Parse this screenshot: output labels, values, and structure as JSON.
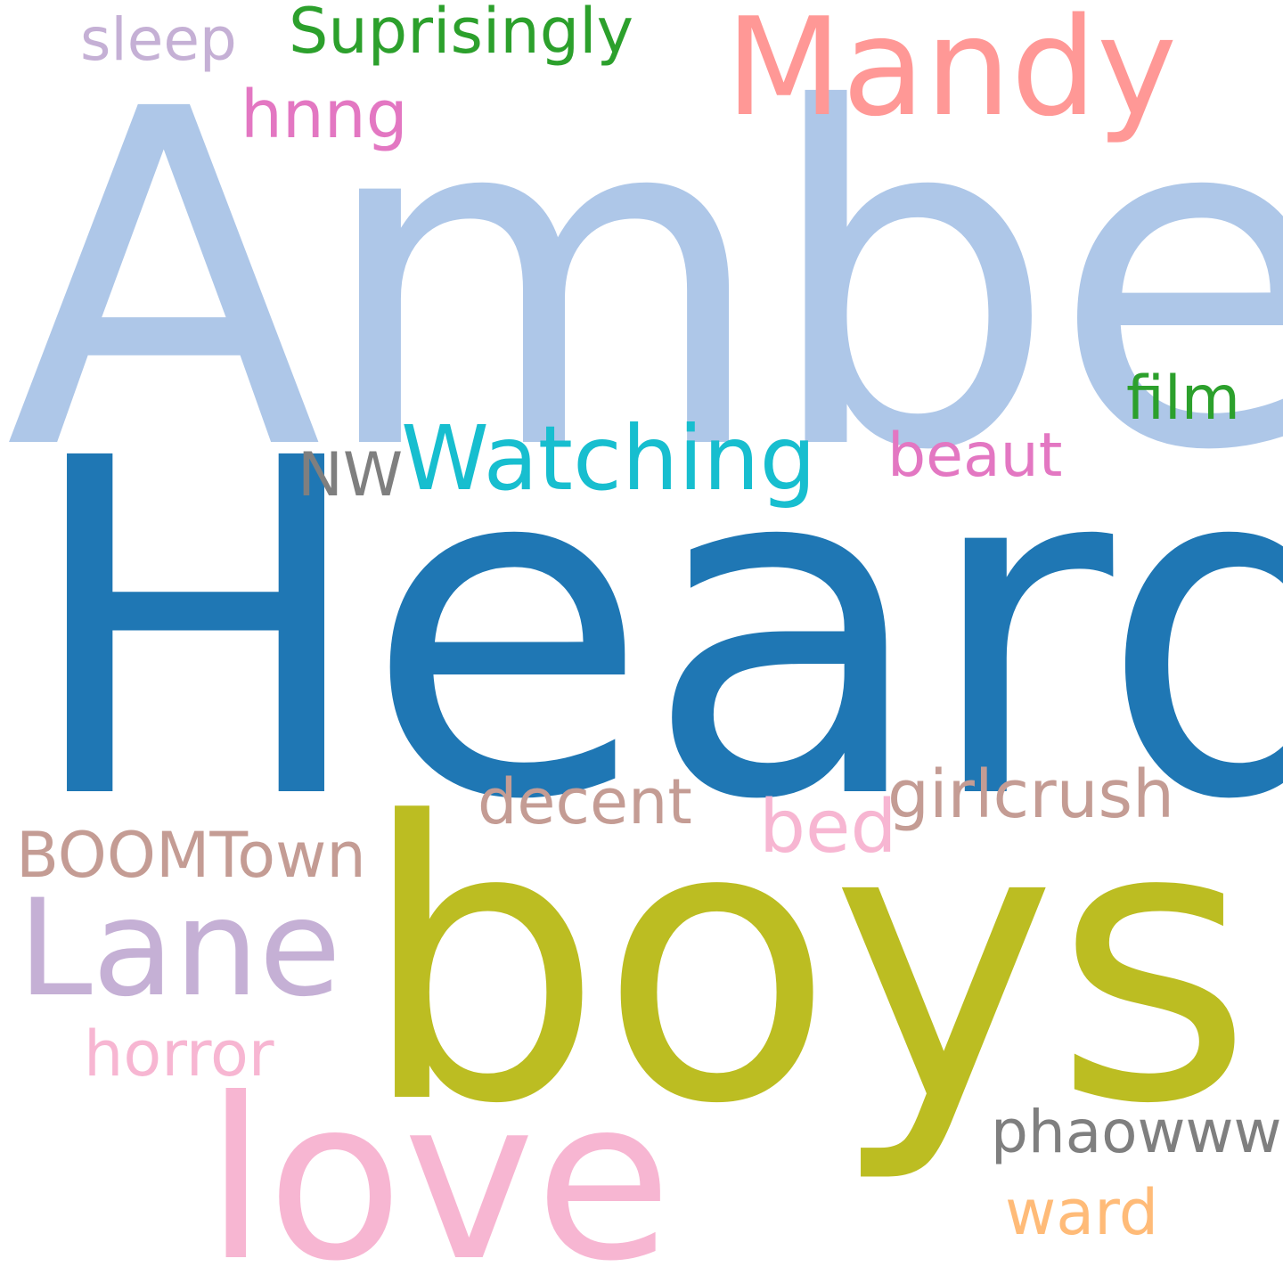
{
  "title": "",
  "words": {
    "amber": {
      "text": "Amber",
      "color": "#aec7e8"
    },
    "heard": {
      "text": "Heard",
      "color": "#1f77b4"
    },
    "boys": {
      "text": "boys",
      "color": "#bcbd22"
    },
    "love": {
      "text": "love",
      "color": "#f7b6d2"
    },
    "lane": {
      "text": "Lane",
      "color": "#c5b0d5"
    },
    "mandy": {
      "text": "Mandy",
      "color": "#ff9896"
    },
    "watching": {
      "text": "Watching",
      "color": "#17becf"
    },
    "suprisingly": {
      "text": "Suprisingly",
      "color": "#2ca02c"
    },
    "sleep": {
      "text": "sleep",
      "color": "#c5b0d5"
    },
    "hnng": {
      "text": "hnng",
      "color": "#e377c2"
    },
    "film": {
      "text": "film",
      "color": "#2ca02c"
    },
    "nw": {
      "text": "NW",
      "color": "#7f7f7f"
    },
    "beaut": {
      "text": "beaut",
      "color": "#e377c2"
    },
    "girlcrush": {
      "text": "girlcrush",
      "color": "#c49c94"
    },
    "decent": {
      "text": "decent",
      "color": "#c49c94"
    },
    "bed": {
      "text": "bed",
      "color": "#f7b6d2"
    },
    "boomtown": {
      "text": "BOOMTown",
      "color": "#c49c94"
    },
    "horror": {
      "text": "horror",
      "color": "#f7b6d2"
    },
    "phaowww": {
      "text": "phaowww",
      "color": "#7f7f7f"
    },
    "ward": {
      "text": "ward",
      "color": "#ffbb78"
    }
  }
}
